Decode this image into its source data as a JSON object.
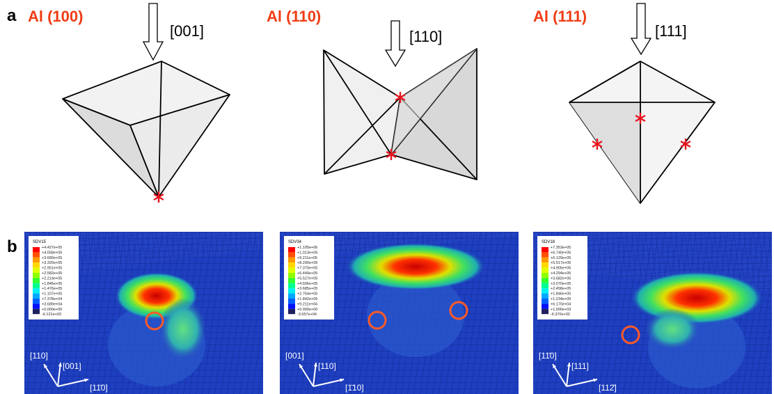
{
  "panel_a": {
    "label": "a",
    "items": [
      {
        "title": "Al (100)",
        "direction": "[001]"
      },
      {
        "title": "Al (110)",
        "direction": "[110]"
      },
      {
        "title": "Al (111)",
        "direction": "[111]"
      }
    ]
  },
  "panel_b": {
    "label": "b",
    "items": [
      {
        "legend_title": "SDV15",
        "legend_values": [
          "+4.427e+05",
          "+4.058e+05",
          "+3.689e+05",
          "+3.320e+05",
          "+2.951e+05",
          "+2.582e+05",
          "+2.214e+05",
          "+1.845e+05",
          "+1.476e+05",
          "+1.107e+05",
          "+7.378e+04",
          "+3.689e+04",
          "+0.000e+00",
          "-6.121e+03"
        ],
        "axes": [
          "[110]",
          "[001]",
          "[11̄0]"
        ]
      },
      {
        "legend_title": "SDV34",
        "legend_values": [
          "+1.105e+06",
          "+1.013e+06",
          "+9.211e+05",
          "+8.290e+05",
          "+7.370e+05",
          "+6.449e+05",
          "+5.527e+05",
          "+4.606e+05",
          "+3.685e+05",
          "+2.764e+05",
          "+1.842e+05",
          "+9.211e+04",
          "+0.000e+00",
          "-3.557e+04"
        ],
        "axes": [
          "[001]",
          "[110]",
          "[1̄10]"
        ]
      },
      {
        "legend_title": "SDV18",
        "legend_values": [
          "+7.353e+05",
          "+6.740e+05",
          "+6.129e+05",
          "+5.517e+05",
          "+4.905e+05",
          "+4.294e+05",
          "+3.682e+05",
          "+3.070e+05",
          "+2.458e+05",
          "+1.846e+05",
          "+1.234e+05",
          "+6.170e+04",
          "+1.000e+03",
          "-6.370e+02"
        ],
        "axes": [
          "[11̄0]",
          "[111]",
          "[112̄]"
        ]
      }
    ]
  }
}
